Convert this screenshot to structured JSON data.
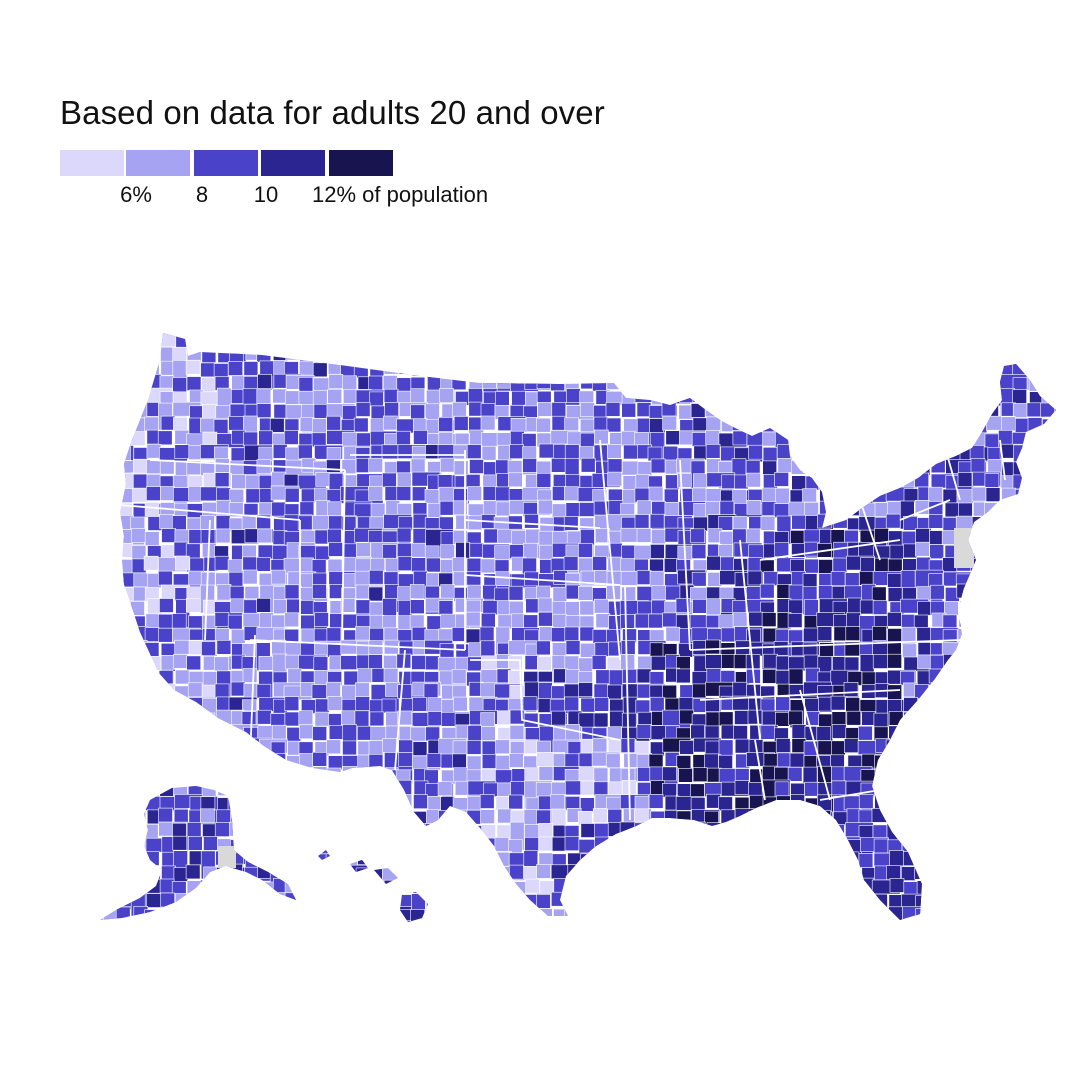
{
  "title": "Based on data for adults 20 and over",
  "legend": {
    "bins": [
      {
        "range": "under 6%",
        "color": "#dcd8fb"
      },
      {
        "range": "6–8%",
        "color": "#a6a3f2"
      },
      {
        "range": "8–10%",
        "color": "#4a43c9"
      },
      {
        "range": "10–12%",
        "color": "#2b2591"
      },
      {
        "range": "12% and over",
        "color": "#18144f"
      }
    ],
    "ticks": [
      "6%",
      "8",
      "10",
      "12% of population"
    ]
  },
  "map": {
    "projection": "US counties (lower 48, Alaska and Hawaii insets)",
    "no_data_color": "#d9d9d9",
    "borders": "#ffffff",
    "regional_pattern": {
      "west_coast": "6–8%, pockets 8–10%",
      "mountain_west": "mixed 6–10%, scattered 10–12%",
      "great_plains": "mostly 6–8%, scattered light and dark counties",
      "texas": "mostly 6–8%, darker near the Gulf and Rio Grande",
      "midwest": "6–10%",
      "appalachia_and_deep_south": "10–12% and 12% and over",
      "northeast": "8–10%",
      "florida": "8–12%",
      "alaska": "8–10%",
      "hawaii": "8–10%"
    }
  }
}
